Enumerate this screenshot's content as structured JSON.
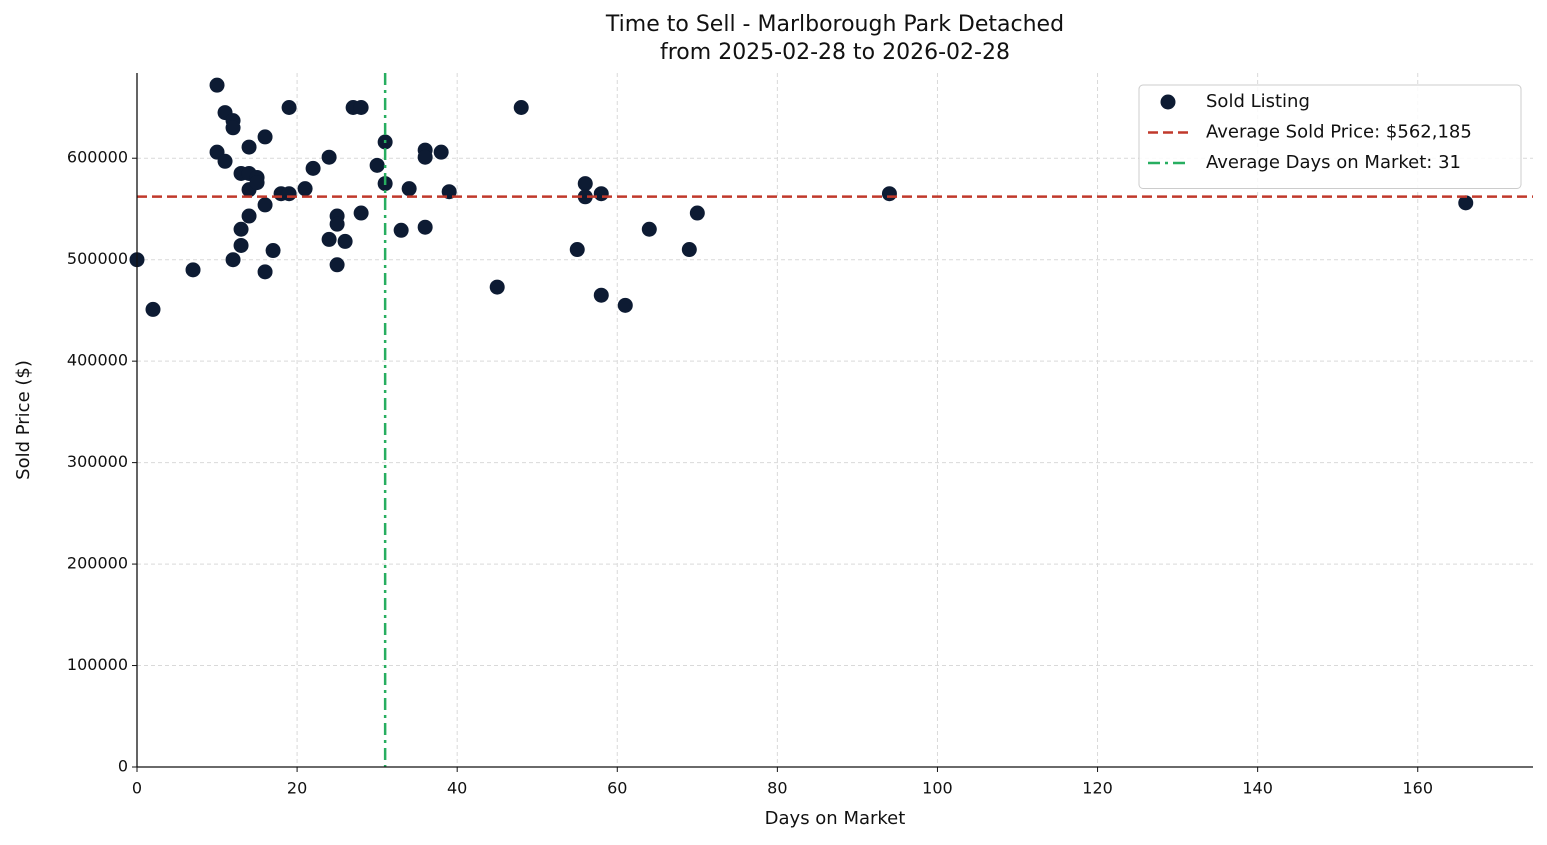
{
  "chart_data": {
    "type": "scatter",
    "title": "Time to Sell - Marlborough Park Detached",
    "subtitle": "from 2025-02-28 to 2026-02-28",
    "x_label": "Days on Market",
    "y_label": "Sold Price ($)",
    "xlim": [
      0,
      174.4
    ],
    "ylim": [
      0,
      684000
    ],
    "xticks": [
      0,
      20,
      40,
      60,
      80,
      100,
      120,
      140,
      160
    ],
    "yticks": [
      0,
      100000,
      200000,
      300000,
      400000,
      500000,
      600000
    ],
    "grid": true,
    "legend": "upper right",
    "series": [
      {
        "name": "Sold Listing",
        "color": "#0d1b33",
        "x": [
          0,
          2,
          7,
          10,
          10,
          11,
          11,
          12,
          12,
          12,
          13,
          13,
          13,
          14,
          14,
          14,
          14,
          15,
          15,
          16,
          16,
          16,
          17,
          18,
          19,
          19,
          21,
          22,
          24,
          24,
          25,
          25,
          25,
          26,
          27,
          28,
          28,
          30,
          31,
          31,
          33,
          34,
          36,
          36,
          36,
          38,
          39,
          45,
          48,
          55,
          56,
          56,
          58,
          58,
          61,
          64,
          69,
          70,
          94,
          166
        ],
        "values": [
          500000,
          451000,
          490000,
          672000,
          606000,
          645000,
          597000,
          637000,
          630000,
          500000,
          585000,
          530000,
          514000,
          611000,
          585000,
          569000,
          543000,
          581000,
          576000,
          621000,
          554000,
          488000,
          509000,
          565000,
          650000,
          565000,
          570000,
          590000,
          601000,
          520000,
          543000,
          535000,
          495000,
          518000,
          650000,
          650000,
          546000,
          593000,
          616000,
          575000,
          529000,
          570000,
          608000,
          601000,
          532000,
          606000,
          567000,
          473000,
          650000,
          510000,
          575000,
          562000,
          565000,
          465000,
          455000,
          530000,
          510000,
          546000,
          565000,
          556000
        ]
      }
    ],
    "reference_lines": [
      {
        "name": "Average Sold Price: $562,185",
        "axis": "y",
        "value": 562185,
        "color": "#c0392b",
        "style": "dashed"
      },
      {
        "name": "Average Days on Market: 31",
        "axis": "x",
        "value": 31,
        "color": "#27ae60",
        "style": "dashdot"
      }
    ]
  }
}
